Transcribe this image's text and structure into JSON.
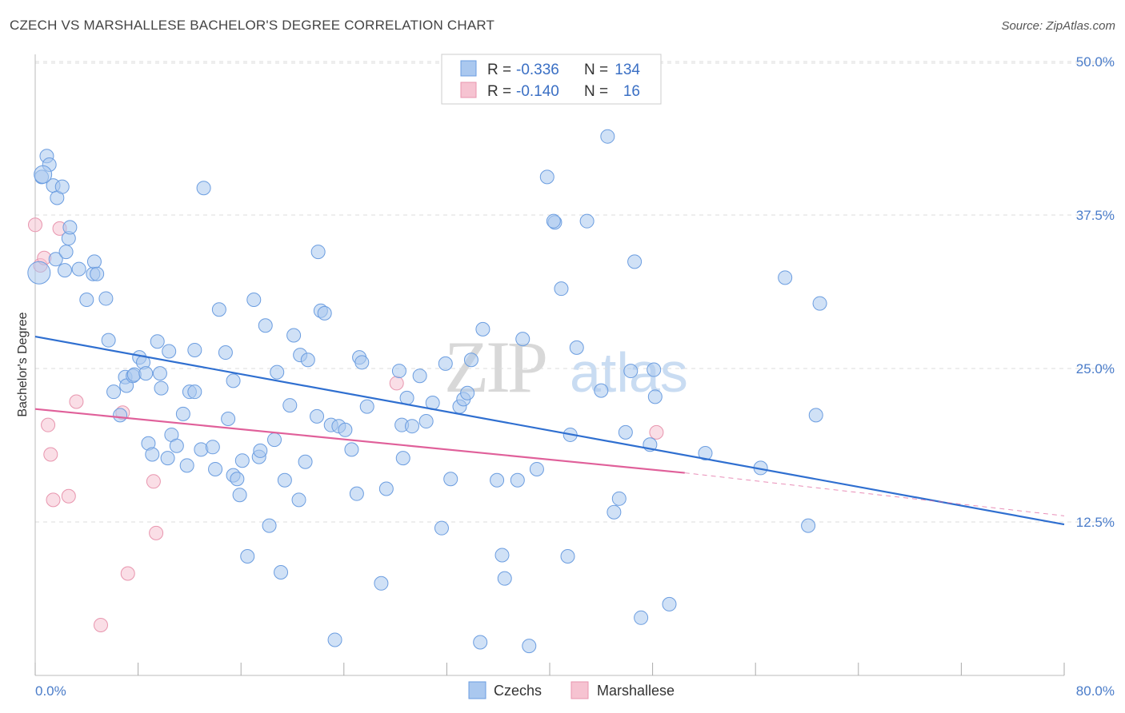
{
  "title": "CZECH VS MARSHALLESE BACHELOR'S DEGREE CORRELATION CHART",
  "source": "Source: ZipAtlas.com",
  "watermark": "ZIPatlas",
  "colors": {
    "czech_fill": "#aac8ef",
    "czech_stroke": "#6b9de0",
    "czech_line": "#2f6fd0",
    "marsh_fill": "#f6c3d1",
    "marsh_stroke": "#e895ae",
    "marsh_line": "#e0609a",
    "tick_text": "#4a7cc9",
    "grid": "#dddddd"
  },
  "legend": {
    "rows": [
      {
        "r_label": "R =",
        "r_value": "-0.336",
        "n_label": "N =",
        "n_value": "134"
      },
      {
        "r_label": "R =",
        "r_value": "-0.140",
        "n_label": "N =",
        "n_value": "16"
      }
    ]
  },
  "bottom_legend": [
    "Czechs",
    "Marshallese"
  ],
  "chart_data": {
    "type": "scatter",
    "title": "CZECH VS MARSHALLESE BACHELOR'S DEGREE CORRELATION CHART",
    "xlabel": "",
    "ylabel": "Bachelor's Degree",
    "xlim": [
      0,
      80
    ],
    "ylim": [
      0,
      50
    ],
    "x_tick_labels": [
      "0.0%",
      "80.0%"
    ],
    "y_ticks": [
      12.5,
      25.0,
      37.5,
      50.0
    ],
    "y_tick_labels": [
      "12.5%",
      "25.0%",
      "37.5%",
      "50.0%"
    ],
    "series": [
      {
        "name": "Czechs",
        "trend": {
          "x": [
            0,
            80
          ],
          "y": [
            27.6,
            12.3
          ]
        },
        "points": [
          [
            0.5,
            40.6
          ],
          [
            0.9,
            42.3
          ],
          [
            1.1,
            41.6
          ],
          [
            1.4,
            39.9
          ],
          [
            1.7,
            38.9
          ],
          [
            2.1,
            39.8
          ],
          [
            1.6,
            33.9
          ],
          [
            2.4,
            34.5
          ],
          [
            2.6,
            35.6
          ],
          [
            2.7,
            36.5
          ],
          [
            3.4,
            33.1
          ],
          [
            4.5,
            32.7
          ],
          [
            4.6,
            33.7
          ],
          [
            4.8,
            32.7
          ],
          [
            4.0,
            30.6
          ],
          [
            5.5,
            30.7
          ],
          [
            5.7,
            27.3
          ],
          [
            6.1,
            23.1
          ],
          [
            6.6,
            21.2
          ],
          [
            7.0,
            24.3
          ],
          [
            7.1,
            23.6
          ],
          [
            7.6,
            24.4
          ],
          [
            7.7,
            24.5
          ],
          [
            8.1,
            25.9
          ],
          [
            8.4,
            25.5
          ],
          [
            8.6,
            24.6
          ],
          [
            8.8,
            18.9
          ],
          [
            9.1,
            18.0
          ],
          [
            9.5,
            27.2
          ],
          [
            9.8,
            23.4
          ],
          [
            10.3,
            17.7
          ],
          [
            10.4,
            26.4
          ],
          [
            10.6,
            19.6
          ],
          [
            11.0,
            18.7
          ],
          [
            11.5,
            21.3
          ],
          [
            11.8,
            17.1
          ],
          [
            12.0,
            23.1
          ],
          [
            12.4,
            23.1
          ],
          [
            12.4,
            26.5
          ],
          [
            12.9,
            18.4
          ],
          [
            13.1,
            39.7
          ],
          [
            13.8,
            18.6
          ],
          [
            14.0,
            16.8
          ],
          [
            14.3,
            29.8
          ],
          [
            14.8,
            26.3
          ],
          [
            15.0,
            20.9
          ],
          [
            15.4,
            16.3
          ],
          [
            15.4,
            24.0
          ],
          [
            15.7,
            16.0
          ],
          [
            15.9,
            14.7
          ],
          [
            16.1,
            17.5
          ],
          [
            16.5,
            9.7
          ],
          [
            17.0,
            30.6
          ],
          [
            17.4,
            17.8
          ],
          [
            17.5,
            18.3
          ],
          [
            17.9,
            28.5
          ],
          [
            18.2,
            12.2
          ],
          [
            18.6,
            19.2
          ],
          [
            18.8,
            24.7
          ],
          [
            19.1,
            8.4
          ],
          [
            19.4,
            15.9
          ],
          [
            19.8,
            22.0
          ],
          [
            20.1,
            27.7
          ],
          [
            20.5,
            14.3
          ],
          [
            20.6,
            26.1
          ],
          [
            21.0,
            17.4
          ],
          [
            21.2,
            25.7
          ],
          [
            21.9,
            21.1
          ],
          [
            22.0,
            34.5
          ],
          [
            22.2,
            29.7
          ],
          [
            22.5,
            29.5
          ],
          [
            23.0,
            20.4
          ],
          [
            23.3,
            2.9
          ],
          [
            23.6,
            20.3
          ],
          [
            24.1,
            20.0
          ],
          [
            24.6,
            18.4
          ],
          [
            25.0,
            14.8
          ],
          [
            25.2,
            25.9
          ],
          [
            25.4,
            25.5
          ],
          [
            25.8,
            21.9
          ],
          [
            26.9,
            7.5
          ],
          [
            27.3,
            15.2
          ],
          [
            28.3,
            24.8
          ],
          [
            28.5,
            20.4
          ],
          [
            28.6,
            17.7
          ],
          [
            28.9,
            22.6
          ],
          [
            29.3,
            20.3
          ],
          [
            29.9,
            24.4
          ],
          [
            30.4,
            20.7
          ],
          [
            30.9,
            22.2
          ],
          [
            31.6,
            12.0
          ],
          [
            31.9,
            25.4
          ],
          [
            32.3,
            16.0
          ],
          [
            33.0,
            21.9
          ],
          [
            33.3,
            22.5
          ],
          [
            33.6,
            23.0
          ],
          [
            33.9,
            25.7
          ],
          [
            34.6,
            2.7
          ],
          [
            34.8,
            28.2
          ],
          [
            35.9,
            15.9
          ],
          [
            36.3,
            9.8
          ],
          [
            36.5,
            7.9
          ],
          [
            37.5,
            15.9
          ],
          [
            37.9,
            27.4
          ],
          [
            38.4,
            2.4
          ],
          [
            39.0,
            16.8
          ],
          [
            39.8,
            40.6
          ],
          [
            40.4,
            36.9
          ],
          [
            40.3,
            37.0
          ],
          [
            40.9,
            31.5
          ],
          [
            41.4,
            9.7
          ],
          [
            41.6,
            19.6
          ],
          [
            42.1,
            26.7
          ],
          [
            42.9,
            37.0
          ],
          [
            44.0,
            23.2
          ],
          [
            44.5,
            43.9
          ],
          [
            45.0,
            13.3
          ],
          [
            45.4,
            14.4
          ],
          [
            45.9,
            19.8
          ],
          [
            46.3,
            24.8
          ],
          [
            46.6,
            33.7
          ],
          [
            47.1,
            4.7
          ],
          [
            47.8,
            18.8
          ],
          [
            48.1,
            24.9
          ],
          [
            48.2,
            22.7
          ],
          [
            49.3,
            5.8
          ],
          [
            52.1,
            18.1
          ],
          [
            56.4,
            16.9
          ],
          [
            58.3,
            32.4
          ],
          [
            60.1,
            12.2
          ],
          [
            60.7,
            21.2
          ],
          [
            61.0,
            30.3
          ],
          [
            2.3,
            33.0
          ],
          [
            9.7,
            24.6
          ]
        ]
      },
      {
        "name": "Marshallese",
        "trend": {
          "x": [
            0,
            50.5
          ],
          "y": [
            21.7,
            16.5
          ],
          "dashed_to": {
            "x": 80,
            "y": 13.0
          }
        },
        "points": [
          [
            0.0,
            36.7
          ],
          [
            0.4,
            33.4
          ],
          [
            0.7,
            34.0
          ],
          [
            1.0,
            20.4
          ],
          [
            1.2,
            18.0
          ],
          [
            1.4,
            14.3
          ],
          [
            1.9,
            36.4
          ],
          [
            2.6,
            14.6
          ],
          [
            3.2,
            22.3
          ],
          [
            5.1,
            4.1
          ],
          [
            6.8,
            21.4
          ],
          [
            7.2,
            8.3
          ],
          [
            9.2,
            15.8
          ],
          [
            9.4,
            11.6
          ],
          [
            28.1,
            23.8
          ],
          [
            48.3,
            19.8
          ]
        ]
      }
    ]
  }
}
